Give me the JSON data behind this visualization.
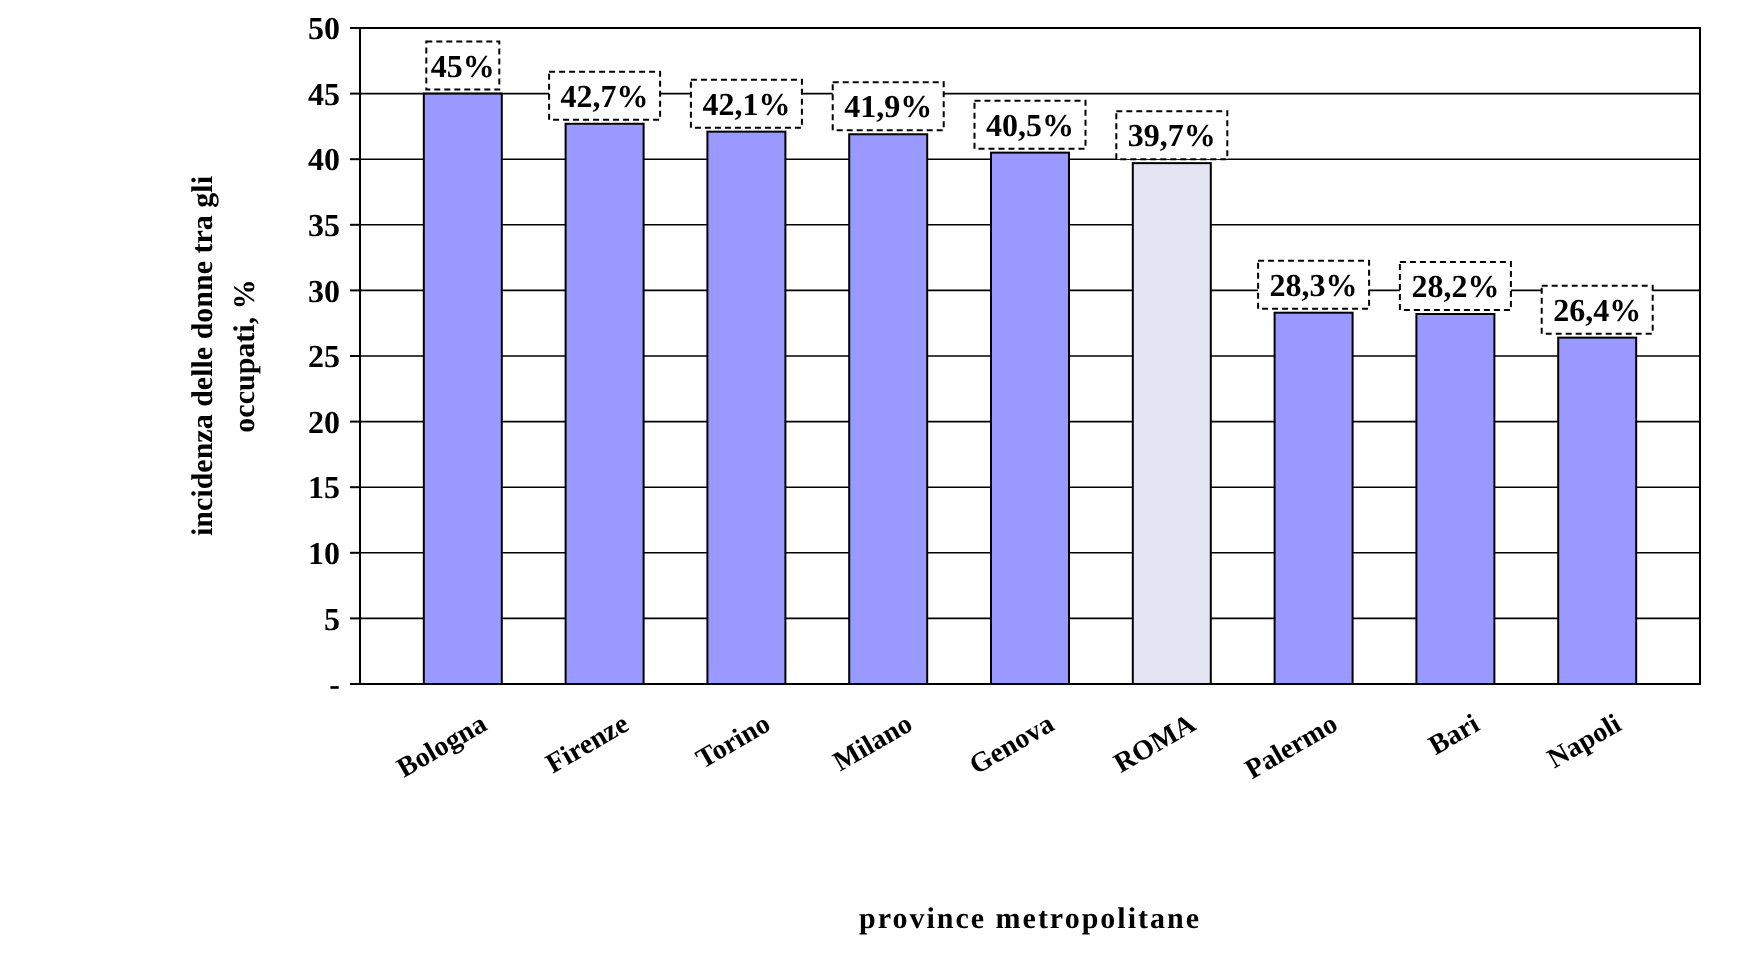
{
  "chart_data": {
    "type": "bar",
    "xlabel": "province metropolitane",
    "ylabel": "incidenza delle donne tra gli occupati, %",
    "categories": [
      "Bologna",
      "Firenze",
      "Torino",
      "Milano",
      "Genova",
      "ROMA",
      "Palermo",
      "Bari",
      "Napoli"
    ],
    "values": [
      45,
      42.7,
      42.1,
      41.9,
      40.5,
      39.7,
      28.3,
      28.2,
      26.4
    ],
    "colors": [
      "#9999ff",
      "#9999ff",
      "#9999ff",
      "#9999ff",
      "#9999ff",
      "#e4e4f2",
      "#9999ff",
      "#9999ff",
      "#9999ff"
    ],
    "value_labels": [
      "45%",
      "42,7%",
      "42,1%",
      "41,9%",
      "40,5%",
      "39,7%",
      "28,3%",
      "28,2%",
      "26,4%"
    ],
    "ylim": [
      0,
      50
    ],
    "yticks": [
      {
        "value": 0,
        "label": "-"
      },
      5,
      10,
      15,
      20,
      25,
      30,
      35,
      40,
      45,
      50
    ],
    "grid": "y"
  }
}
